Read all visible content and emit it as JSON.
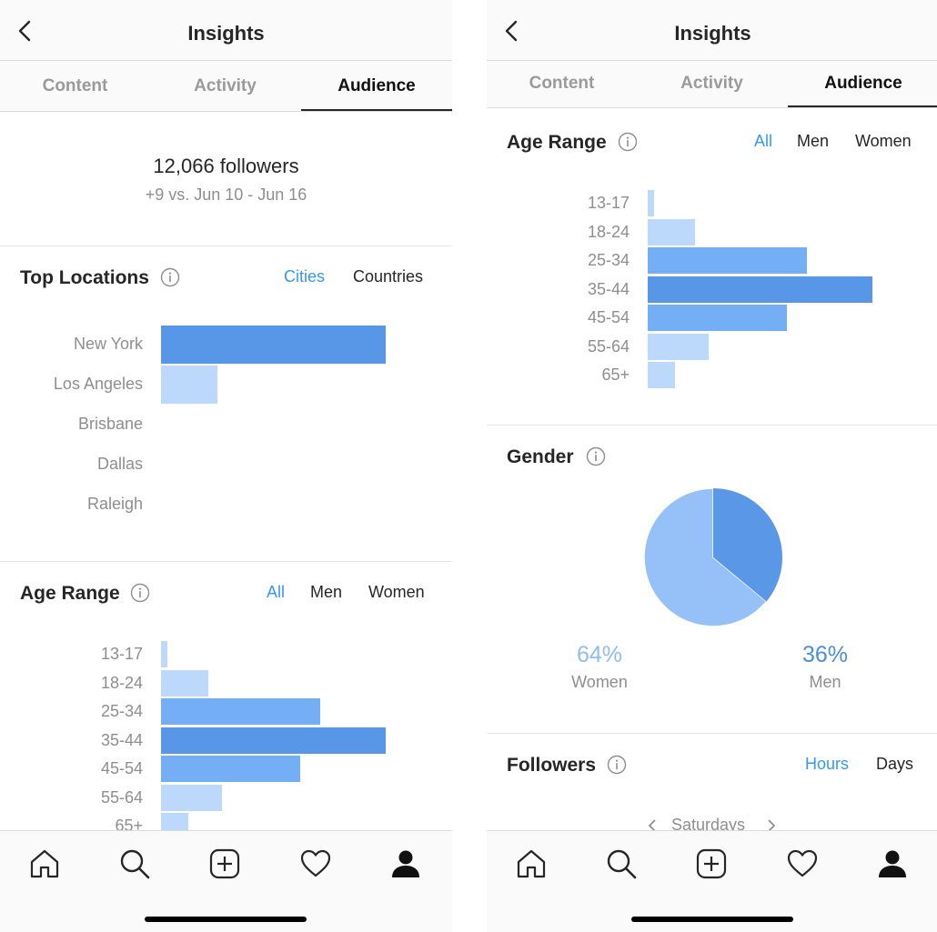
{
  "left": {
    "header": {
      "title": "Insights"
    },
    "tabs": [
      "Content",
      "Activity",
      "Audience"
    ],
    "active_tab": 2,
    "followers": {
      "count": "12,066 followers",
      "delta": "+9 vs. Jun 10 - Jun 16"
    },
    "top_locations": {
      "title": "Top Locations",
      "filters": [
        "Cities",
        "Countries"
      ],
      "selected_filter": "Cities",
      "cities": [
        {
          "label": "New York",
          "value": 1.0
        },
        {
          "label": "Los Angeles",
          "value": 0.25
        },
        {
          "label": "Brisbane",
          "value": 0
        },
        {
          "label": "Dallas",
          "value": 0
        },
        {
          "label": "Raleigh",
          "value": 0
        }
      ]
    },
    "age_range": {
      "title": "Age Range",
      "filters": [
        "All",
        "Men",
        "Women"
      ],
      "selected_filter": "All",
      "bars": [
        {
          "label": "13-17",
          "value": 0.03
        },
        {
          "label": "18-24",
          "value": 0.21
        },
        {
          "label": "25-34",
          "value": 0.71
        },
        {
          "label": "35-44",
          "value": 1.0
        },
        {
          "label": "45-54",
          "value": 0.62
        },
        {
          "label": "55-64",
          "value": 0.27
        },
        {
          "label": "65+",
          "value": 0.12
        }
      ]
    }
  },
  "right": {
    "header": {
      "title": "Insights"
    },
    "tabs": [
      "Content",
      "Activity",
      "Audience"
    ],
    "active_tab": 2,
    "age_range": {
      "title": "Age Range",
      "filters": [
        "All",
        "Men",
        "Women"
      ],
      "selected_filter": "All",
      "bars": [
        {
          "label": "13-17",
          "value": 0.03
        },
        {
          "label": "18-24",
          "value": 0.21
        },
        {
          "label": "25-34",
          "value": 0.71
        },
        {
          "label": "35-44",
          "value": 1.0
        },
        {
          "label": "45-54",
          "value": 0.62
        },
        {
          "label": "55-64",
          "value": 0.27
        },
        {
          "label": "65+",
          "value": 0.12
        }
      ]
    },
    "gender": {
      "title": "Gender",
      "women": {
        "percent": "64%",
        "label": "Women",
        "value": 64
      },
      "men": {
        "percent": "36%",
        "label": "Men",
        "value": 36
      }
    },
    "followers_section": {
      "title": "Followers",
      "filters": [
        "Hours",
        "Days"
      ],
      "selected_filter": "Hours",
      "day_selector": "Saturdays"
    }
  },
  "bottom_nav": [
    "home-icon",
    "search-icon",
    "add-post-icon",
    "heart-icon",
    "profile-icon"
  ],
  "colors": {
    "accent_link": "#3897f0",
    "bar_strong": "#5897e8",
    "bar_medium": "#74aef5",
    "bar_light": "#bcd8fb",
    "pie_women": "#96c0f8",
    "pie_men": "#5a97e6",
    "women_text": "#8fbdf2",
    "men_text": "#4a8ee2"
  }
}
